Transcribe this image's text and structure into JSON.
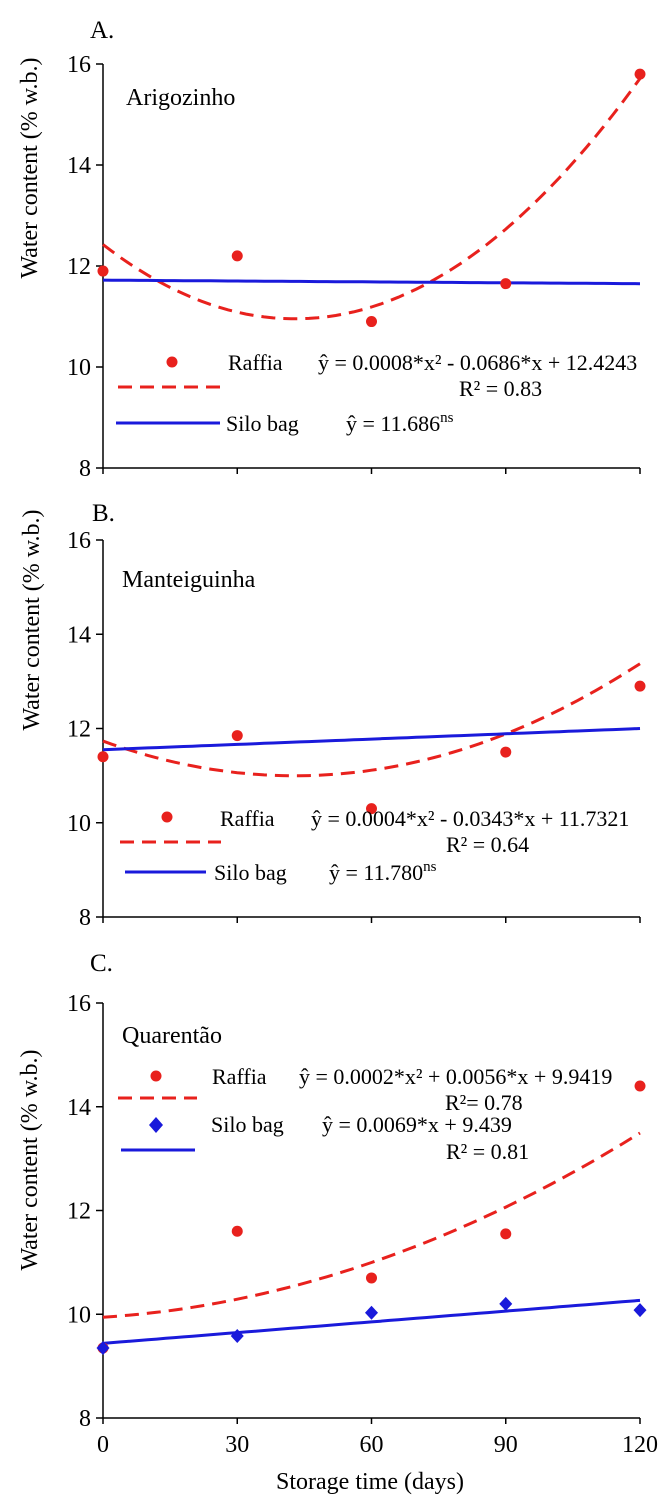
{
  "colors": {
    "raffia": "#e8211d",
    "silo": "#1a1adb",
    "axis": "#000000"
  },
  "x_axis": {
    "label": "Storage time (days)",
    "ticks": [
      0,
      30,
      60,
      90,
      120
    ]
  },
  "chart_data": [
    {
      "type": "scatter",
      "panel_label": "A.",
      "title": "Arigozinho",
      "xlabel": "",
      "ylabel": "Water content  (% w.b.)",
      "xlim": [
        0,
        120
      ],
      "ylim": [
        8,
        16
      ],
      "yticks": [
        8,
        10,
        12,
        14,
        16
      ],
      "series": [
        {
          "name": "Raffia",
          "marker": "circle",
          "line": "dashed",
          "x": [
            0,
            30,
            60,
            90,
            120
          ],
          "y": [
            11.9,
            12.2,
            10.9,
            11.65,
            15.8
          ],
          "fit": {
            "kind": "quadratic",
            "a": 0.0008,
            "b": -0.0686,
            "c": 12.4243
          },
          "equation": "ŷ = 0.0008*x² - 0.0686*x + 12.4243",
          "r2": "R² = 0.83"
        },
        {
          "name": "Silo bag",
          "marker": "none",
          "line": "solid",
          "fit": {
            "kind": "linear",
            "start": 11.72,
            "end": 11.65
          },
          "equation": "ŷ = 11.686",
          "equation_sup": "ns",
          "r2": ""
        }
      ]
    },
    {
      "type": "scatter",
      "panel_label": "B.",
      "title": "Manteiguinha",
      "xlabel": "",
      "ylabel": "Water content  (% w.b.)",
      "xlim": [
        0,
        120
      ],
      "ylim": [
        8,
        16
      ],
      "yticks": [
        8,
        10,
        12,
        14,
        16
      ],
      "series": [
        {
          "name": "Raffia",
          "marker": "circle",
          "line": "dashed",
          "x": [
            0,
            30,
            60,
            90,
            120
          ],
          "y": [
            11.4,
            11.85,
            10.3,
            11.5,
            12.9
          ],
          "fit": {
            "kind": "quadratic",
            "a": 0.0004,
            "b": -0.0343,
            "c": 11.7321
          },
          "equation": "ŷ = 0.0004*x² - 0.0343*x + 11.7321",
          "r2": "R² = 0.64"
        },
        {
          "name": "Silo bag",
          "marker": "none",
          "line": "solid",
          "fit": {
            "kind": "linear",
            "start": 11.55,
            "end": 12.0
          },
          "equation": "ŷ = 11.780",
          "equation_sup": "ns",
          "r2": ""
        }
      ]
    },
    {
      "type": "scatter",
      "panel_label": "C.",
      "title": "Quarentão",
      "xlabel": "Storage time (days)",
      "ylabel": "Water content  (% w.b.)",
      "xlim": [
        0,
        120
      ],
      "ylim": [
        8,
        16
      ],
      "yticks": [
        8,
        10,
        12,
        14,
        16
      ],
      "series": [
        {
          "name": "Raffia",
          "marker": "circle",
          "line": "dashed",
          "x": [
            0,
            30,
            60,
            90,
            120
          ],
          "y": [
            9.35,
            11.6,
            10.7,
            11.55,
            14.4
          ],
          "fit": {
            "kind": "quadratic",
            "a": 0.0002,
            "b": 0.0056,
            "c": 9.9419
          },
          "equation": "ŷ = 0.0002*x² + 0.0056*x + 9.9419",
          "r2": "R²= 0.78"
        },
        {
          "name": "Silo bag",
          "marker": "diamond",
          "line": "solid",
          "x": [
            0,
            30,
            60,
            90,
            120
          ],
          "y": [
            9.35,
            9.58,
            10.03,
            10.2,
            10.08
          ],
          "fit": {
            "kind": "linear",
            "slope": 0.0069,
            "intercept": 9.439
          },
          "equation": "ŷ = 0.0069*x + 9.439",
          "r2": "R² = 0.81"
        }
      ]
    }
  ]
}
